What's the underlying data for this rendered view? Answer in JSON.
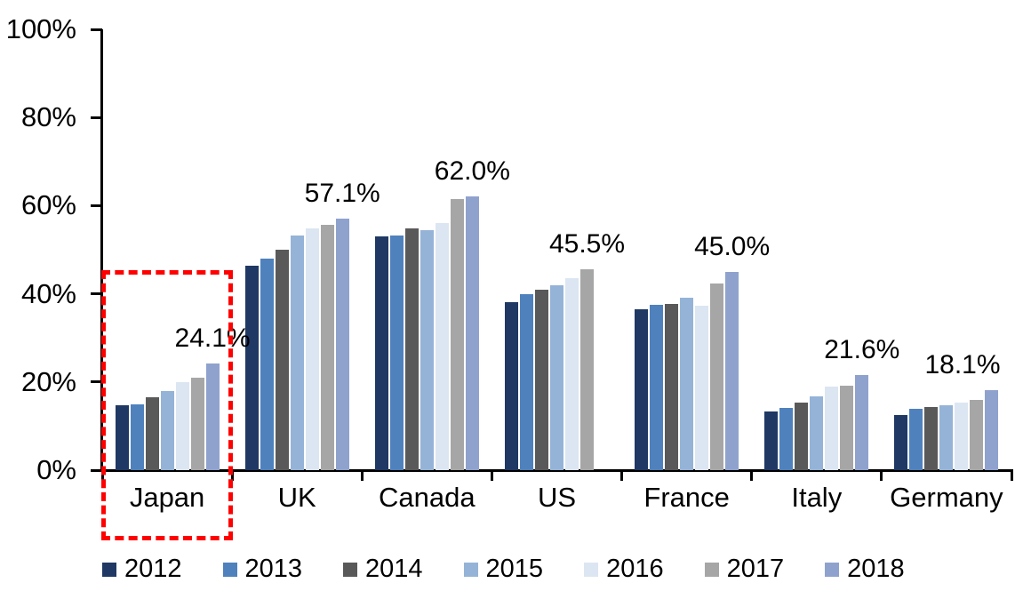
{
  "chart_data": {
    "type": "bar",
    "title": "",
    "categories": [
      "Japan",
      "UK",
      "Canada",
      "US",
      "France",
      "Italy",
      "Germany"
    ],
    "series": [
      {
        "name": "2012",
        "color": "#1F3864",
        "values": [
          14.8,
          46.3,
          53.0,
          38.1,
          36.5,
          13.3,
          12.4
        ]
      },
      {
        "name": "2013",
        "color": "#4F81BD",
        "values": [
          15.0,
          47.9,
          53.3,
          39.9,
          37.6,
          14.1,
          14.0
        ]
      },
      {
        "name": "2014",
        "color": "#595959",
        "values": [
          16.6,
          50.0,
          54.9,
          41.0,
          37.8,
          15.3,
          14.3
        ]
      },
      {
        "name": "2015",
        "color": "#95B3D7",
        "values": [
          18.0,
          53.2,
          54.5,
          42.0,
          39.2,
          16.8,
          14.7
        ]
      },
      {
        "name": "2016",
        "color": "#DCE6F2",
        "values": [
          19.9,
          54.8,
          56.1,
          43.5,
          37.3,
          19.0,
          15.4
        ]
      },
      {
        "name": "2017",
        "color": "#A6A6A6",
        "values": [
          21.0,
          55.7,
          61.4,
          45.5,
          42.3,
          19.2,
          15.9
        ]
      },
      {
        "name": "2018",
        "color": "#8FA2CE",
        "values": [
          24.1,
          57.1,
          62.0,
          null,
          45.0,
          21.6,
          18.1
        ]
      }
    ],
    "data_labels": [
      {
        "category": "Japan",
        "text": "24.1%"
      },
      {
        "category": "UK",
        "text": "57.1%"
      },
      {
        "category": "Canada",
        "text": "62.0%"
      },
      {
        "category": "US",
        "text": "45.5%"
      },
      {
        "category": "France",
        "text": "45.0%"
      },
      {
        "category": "Italy",
        "text": "21.6%"
      },
      {
        "category": "Germany",
        "text": "18.1%"
      }
    ],
    "y_axis": {
      "tick_labels": [
        "0%",
        "20%",
        "40%",
        "60%",
        "80%",
        "100%"
      ],
      "range": [
        0,
        100
      ],
      "grid": false
    },
    "legend": {
      "position": "bottom"
    },
    "highlight": {
      "category": "Japan",
      "color": "#FF0000",
      "style": "dashed-rectangle"
    },
    "axis_color": "#000000"
  }
}
